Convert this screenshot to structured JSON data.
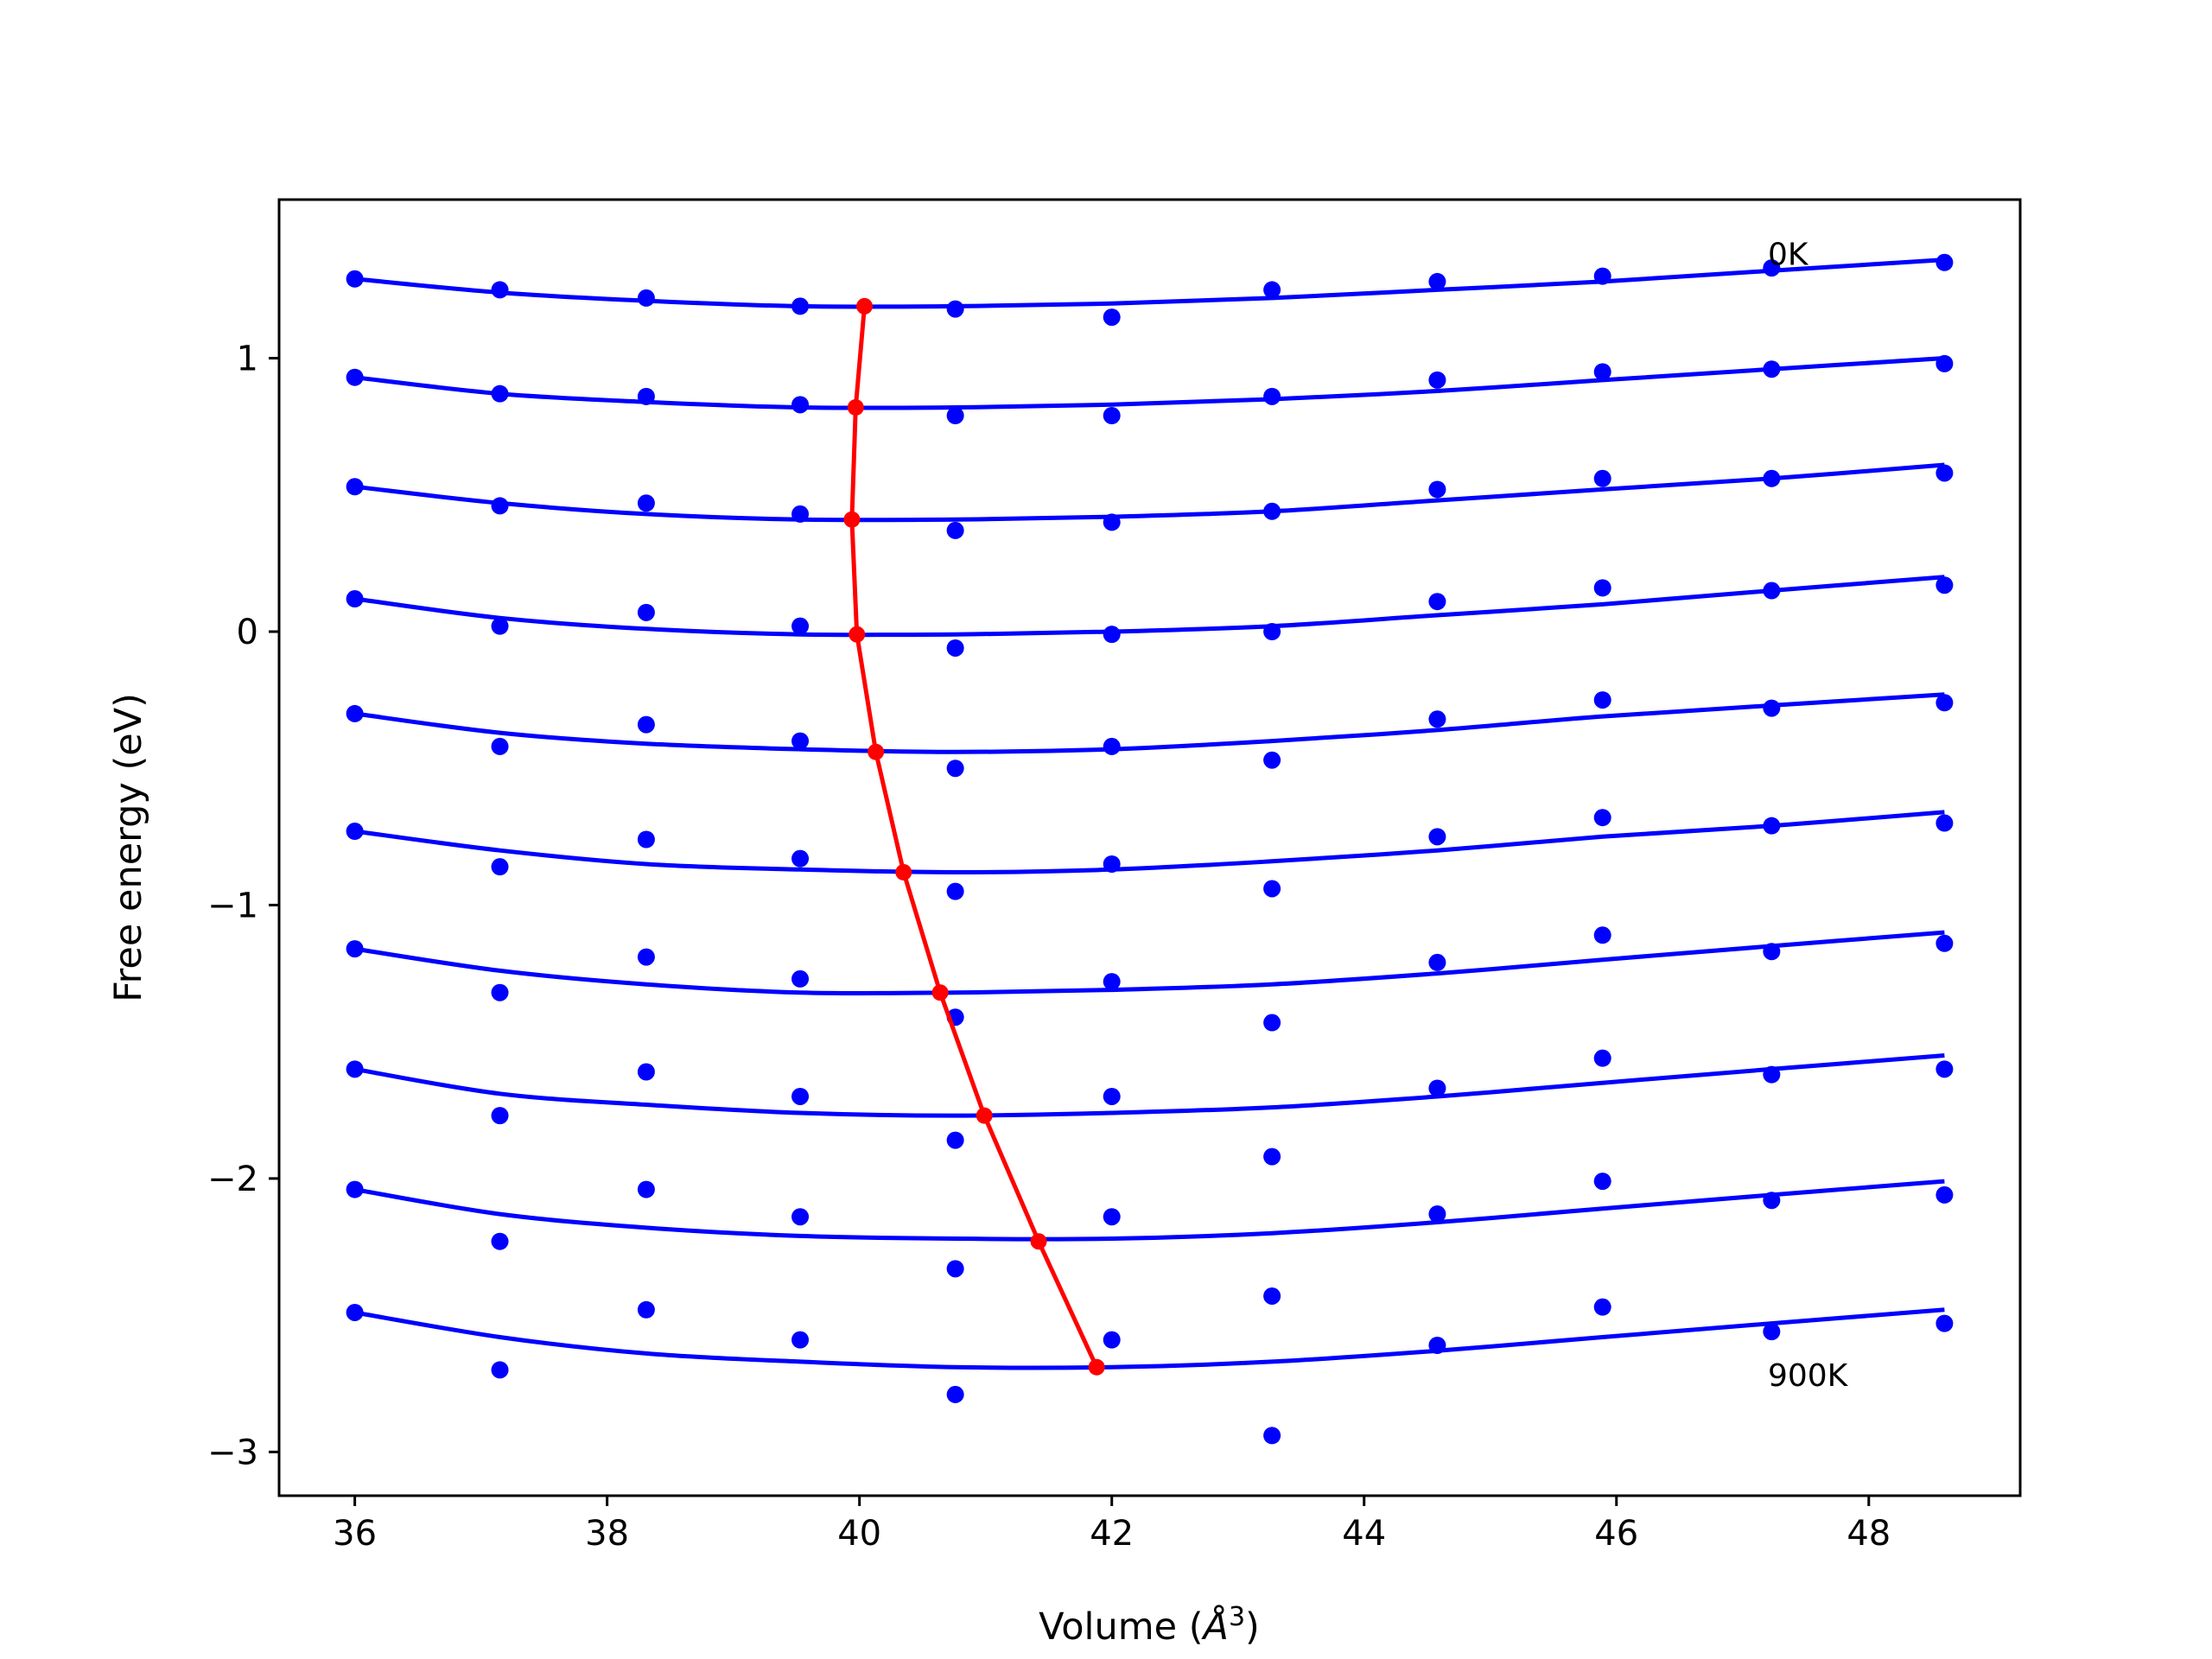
{
  "chart_data": {
    "type": "scatter",
    "xlabel": "Volume (",
    "xlabel_unit": "Å",
    "xlabel_exp": "3",
    "xlabel_close": ")",
    "ylabel": "Free energy (eV)",
    "xlim": [
      35.4,
      49.2
    ],
    "ylim": [
      -3.16,
      1.58
    ],
    "xticks": [
      36,
      38,
      40,
      42,
      44,
      46,
      48
    ],
    "yticks": [
      1,
      0,
      -1,
      -2,
      -3
    ],
    "xtick_labels": [
      "36",
      "38",
      "40",
      "42",
      "44",
      "46",
      "48"
    ],
    "ytick_labels": [
      "1",
      "0",
      "−1",
      "−2",
      "−3"
    ],
    "annotations": [
      {
        "text": "0K",
        "x": 47.2,
        "y": 1.38
      },
      {
        "text": "900K",
        "x": 47.2,
        "y": -2.72
      }
    ],
    "grid": false,
    "colors": {
      "points": "#0000ff",
      "fits": "#0000ff",
      "minima": "#ff0000"
    },
    "x": [
      36.0,
      37.15,
      38.31,
      39.53,
      40.76,
      42.0,
      43.27,
      44.58,
      45.89,
      47.23,
      48.6
    ],
    "point_series": [
      {
        "values": [
          1.29,
          1.25,
          1.22,
          1.19,
          1.18,
          1.15,
          1.25,
          1.28,
          1.3,
          1.33,
          1.35
        ]
      },
      {
        "values": [
          0.93,
          0.87,
          0.86,
          0.83,
          0.79,
          0.79,
          0.86,
          0.92,
          0.95,
          0.96,
          0.98
        ]
      },
      {
        "values": [
          0.53,
          0.46,
          0.47,
          0.43,
          0.37,
          0.4,
          0.44,
          0.52,
          0.56,
          0.56,
          0.58
        ]
      },
      {
        "values": [
          0.12,
          0.02,
          0.07,
          0.02,
          -0.06,
          -0.01,
          0.0,
          0.11,
          0.16,
          0.15,
          0.17
        ]
      },
      {
        "values": [
          -0.3,
          -0.42,
          -0.34,
          -0.4,
          -0.5,
          -0.42,
          -0.47,
          -0.32,
          -0.25,
          -0.28,
          -0.26
        ]
      },
      {
        "values": [
          -0.73,
          -0.86,
          -0.76,
          -0.83,
          -0.95,
          -0.85,
          -0.94,
          -0.75,
          -0.68,
          -0.71,
          -0.7
        ]
      },
      {
        "values": [
          -1.16,
          -1.32,
          -1.19,
          -1.27,
          -1.41,
          -1.28,
          -1.43,
          -1.21,
          -1.11,
          -1.17,
          -1.14
        ]
      },
      {
        "values": [
          -1.6,
          -1.77,
          -1.61,
          -1.7,
          -1.86,
          -1.7,
          -1.92,
          -1.67,
          -1.56,
          -1.62,
          -1.6
        ]
      },
      {
        "values": [
          -2.04,
          -2.23,
          -2.04,
          -2.14,
          -2.33,
          -2.14,
          -2.43,
          -2.13,
          -2.01,
          -2.08,
          -2.06
        ]
      },
      {
        "values": [
          -2.49,
          -2.7,
          -2.48,
          -2.59,
          -2.79,
          -2.59,
          -2.94,
          -2.61,
          -2.47,
          -2.56,
          -2.53
        ]
      }
    ],
    "fit_series": [
      {
        "values": [
          1.29,
          1.24,
          1.21,
          1.19,
          1.19,
          1.2,
          1.22,
          1.25,
          1.28,
          1.32,
          1.36
        ]
      },
      {
        "values": [
          0.93,
          0.87,
          0.84,
          0.82,
          0.82,
          0.83,
          0.85,
          0.88,
          0.92,
          0.96,
          1.0
        ]
      },
      {
        "values": [
          0.53,
          0.47,
          0.43,
          0.41,
          0.41,
          0.42,
          0.44,
          0.48,
          0.52,
          0.56,
          0.61
        ]
      },
      {
        "values": [
          0.12,
          0.05,
          0.01,
          -0.01,
          -0.01,
          0.0,
          0.02,
          0.06,
          0.1,
          0.15,
          0.2
        ]
      },
      {
        "values": [
          -0.3,
          -0.37,
          -0.41,
          -0.43,
          -0.44,
          -0.43,
          -0.4,
          -0.36,
          -0.31,
          -0.27,
          -0.23
        ]
      },
      {
        "values": [
          -0.73,
          -0.8,
          -0.85,
          -0.87,
          -0.88,
          -0.87,
          -0.84,
          -0.8,
          -0.75,
          -0.71,
          -0.66
        ]
      },
      {
        "values": [
          -1.16,
          -1.24,
          -1.29,
          -1.32,
          -1.32,
          -1.31,
          -1.29,
          -1.25,
          -1.2,
          -1.15,
          -1.1
        ]
      },
      {
        "values": [
          -1.6,
          -1.69,
          -1.73,
          -1.76,
          -1.77,
          -1.76,
          -1.74,
          -1.7,
          -1.65,
          -1.6,
          -1.55
        ]
      },
      {
        "values": [
          -2.04,
          -2.13,
          -2.18,
          -2.21,
          -2.22,
          -2.22,
          -2.2,
          -2.16,
          -2.11,
          -2.06,
          -2.01
        ]
      },
      {
        "values": [
          -2.49,
          -2.58,
          -2.64,
          -2.67,
          -2.69,
          -2.69,
          -2.67,
          -2.63,
          -2.58,
          -2.53,
          -2.48
        ]
      }
    ],
    "minima": {
      "x": [
        40.04,
        39.97,
        39.94,
        39.98,
        40.13,
        40.35,
        40.64,
        40.99,
        41.42,
        41.88
      ],
      "y": [
        1.19,
        0.82,
        0.41,
        -0.01,
        -0.44,
        -0.88,
        -1.32,
        -1.77,
        -2.23,
        -2.69
      ]
    }
  }
}
